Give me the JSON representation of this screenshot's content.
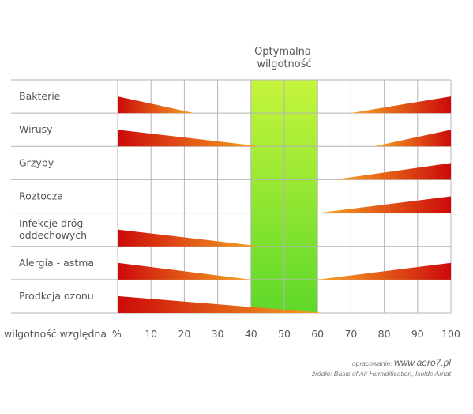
{
  "chart_data": {
    "type": "range-wedge",
    "optimal_band": {
      "label_lines": [
        "Optymalna",
        "wilgotność"
      ],
      "range": [
        40,
        60
      ]
    },
    "x_axis": {
      "label": "wilgotność względna",
      "unit_label": "%",
      "ticks": [
        0,
        10,
        20,
        30,
        40,
        50,
        60,
        70,
        80,
        90,
        100
      ],
      "range": [
        0,
        100
      ]
    },
    "grid": true,
    "rows": [
      {
        "label_lines": [
          "Bakterie"
        ],
        "low": [
          0,
          23
        ],
        "high": [
          70,
          100
        ]
      },
      {
        "label_lines": [
          "Wirusy"
        ],
        "low": [
          0,
          43
        ],
        "high": [
          77,
          100
        ]
      },
      {
        "label_lines": [
          "Grzyby"
        ],
        "low": null,
        "high": [
          65,
          100
        ]
      },
      {
        "label_lines": [
          "Roztocza"
        ],
        "low": null,
        "high": [
          60,
          100
        ]
      },
      {
        "label_lines": [
          "Infekcje dróg",
          "oddechowych"
        ],
        "low": [
          0,
          43
        ],
        "high": null
      },
      {
        "label_lines": [
          "Alergia - astma"
        ],
        "low": [
          0,
          40
        ],
        "high": [
          60,
          100
        ]
      },
      {
        "label_lines": [
          "Prodkcja ozonu"
        ],
        "low": [
          0,
          62
        ],
        "high": null
      }
    ],
    "colors": {
      "wedge_dark": "#cc0a0a",
      "wedge_light": "#f7a623",
      "band_top": "#c6f53c",
      "band_bottom": "#5ed82a",
      "grid": "#b4b4b4"
    }
  },
  "footer": {
    "credit_prefix": "opracowanie:",
    "credit_site": "www.aero7.pl",
    "source": "źródło: Basic of Air Humidification, Isolde Arndt"
  }
}
